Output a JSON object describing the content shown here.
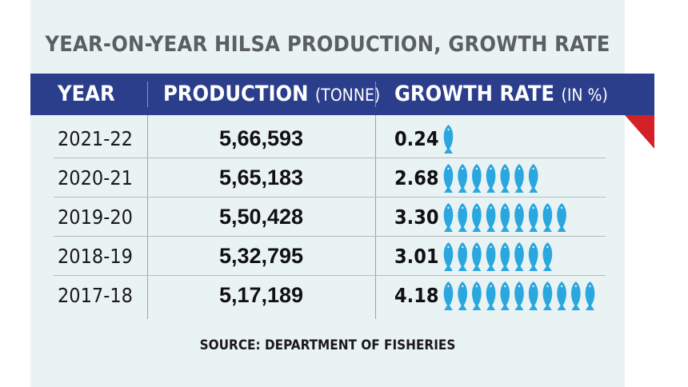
{
  "title": "YEAR-ON-YEAR HILSA PRODUCTION, GROWTH RATE",
  "header": {
    "year": "YEAR",
    "production": "PRODUCTION",
    "production_unit": "(TONNE)",
    "growth": "GROWTH RATE",
    "growth_unit": "(IN %)"
  },
  "source": "SOURCE: DEPARTMENT OF FISHERIES",
  "colors": {
    "header_bg": "#2b3e8c",
    "fish": "#2aa7df",
    "accent_red": "#d42027",
    "panel_bg": "#eaf3f4"
  },
  "icon": "hilsa-fish-icon",
  "chart_data": {
    "type": "table",
    "title": "YEAR-ON-YEAR HILSA PRODUCTION, GROWTH RATE",
    "columns": [
      "YEAR",
      "PRODUCTION (TONNE)",
      "GROWTH RATE (IN %)"
    ],
    "rows": [
      {
        "year": "2021-22",
        "production": "5,66,593",
        "growth": "0.24",
        "fish_count": 1
      },
      {
        "year": "2020-21",
        "production": "5,65,183",
        "growth": "2.68",
        "fish_count": 7
      },
      {
        "year": "2019-20",
        "production": "5,50,428",
        "growth": "3.30",
        "fish_count": 9
      },
      {
        "year": "2018-19",
        "production": "5,32,795",
        "growth": "3.01",
        "fish_count": 8
      },
      {
        "year": "2017-18",
        "production": "5,17,189",
        "growth": "4.18",
        "fish_count": 11
      }
    ]
  }
}
